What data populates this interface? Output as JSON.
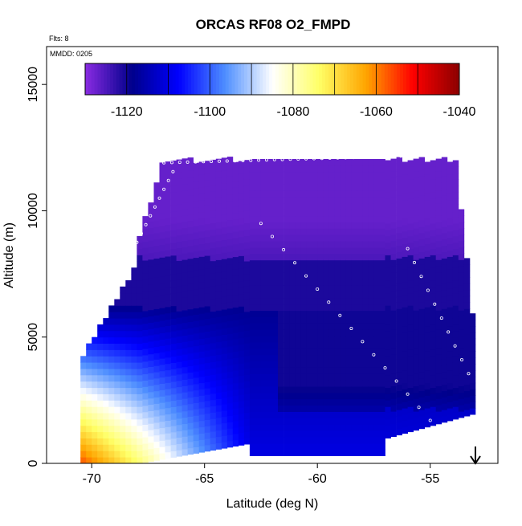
{
  "chart_data": {
    "type": "heatmap",
    "title": "ORCAS RF08 O2_FMPD",
    "subtitle_lines": [
      "Flts: 8",
      "MMDD: 0205"
    ],
    "xlabel": "Latitude (deg N)",
    "ylabel": "Altitude (m)",
    "xlim": [
      -72,
      -52
    ],
    "ylim": [
      0,
      16500
    ],
    "xticks": [
      -70,
      -65,
      -60,
      -55
    ],
    "yticks": [
      0,
      5000,
      10000,
      15000
    ],
    "colorbar": {
      "range": [
        -1130,
        -1040
      ],
      "ticks": [
        -1120,
        -1100,
        -1080,
        -1060,
        -1040
      ],
      "colors": [
        "#8a2be2",
        "#00008b",
        "#0000ff",
        "#4f8fff",
        "#ffffff",
        "#ffff66",
        "#ffa500",
        "#ff0000",
        "#8b0000"
      ]
    },
    "grid": false,
    "annotations": [
      "down-arrow-marker"
    ]
  }
}
